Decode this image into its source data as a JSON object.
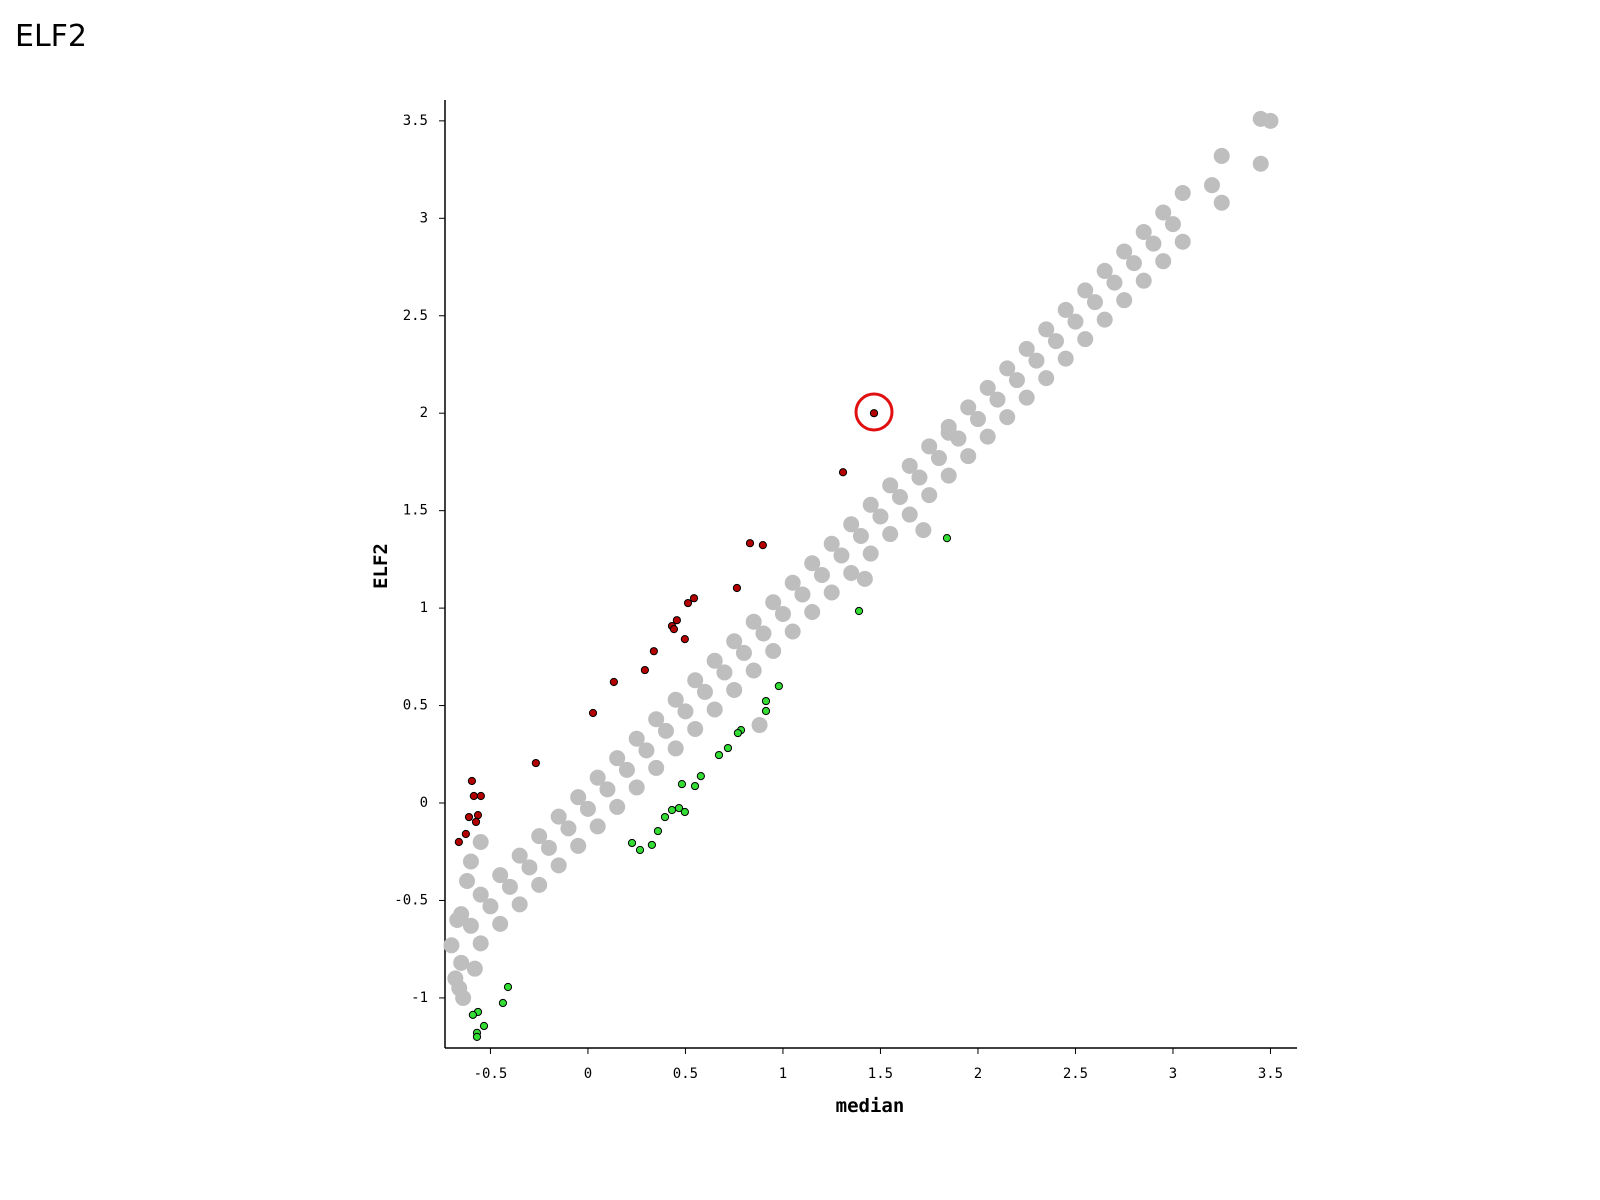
{
  "chart_data": {
    "type": "scatter",
    "title": "ELF2",
    "xlabel": "median",
    "ylabel": "ELF2",
    "xlim": [
      -0.733,
      3.636
    ],
    "ylim": [
      -1.257,
      3.607
    ],
    "xticks": [
      -0.5,
      0,
      0.5,
      1,
      1.5,
      2,
      2.5,
      3,
      3.5
    ],
    "yticks": [
      -1,
      -0.5,
      0,
      0.5,
      1,
      1.5,
      2,
      2.5,
      3,
      3.5
    ],
    "series": [
      {
        "color": "#bebebe",
        "stroke": "none",
        "x": [
          -0.7,
          -0.6,
          -0.5,
          -0.4,
          -0.3,
          -0.2,
          -0.1,
          0,
          0.1,
          0.2,
          0.3,
          0.4,
          0.5,
          0.6,
          0.7,
          0.8,
          0.9,
          1,
          1.1,
          1.2,
          1.3,
          1.4,
          1.5,
          1.6,
          1.7,
          1.8,
          1.9,
          2,
          2.1,
          2.2,
          2.3,
          2.4,
          2.5,
          2.6,
          2.7,
          2.8,
          2.9,
          3,
          3.2,
          3.5,
          -0.65,
          -0.55,
          -0.45,
          -0.35,
          -0.25,
          -0.15,
          -0.05,
          0.05,
          0.15,
          0.25,
          0.35,
          0.45,
          0.55,
          0.65,
          0.75,
          0.85,
          0.95,
          1.05,
          1.15,
          1.25,
          1.35,
          1.45,
          1.55,
          1.65,
          1.75,
          1.85,
          1.95,
          2.05,
          2.15,
          2.25,
          2.35,
          2.45,
          2.55,
          2.65,
          2.75,
          2.85,
          2.95,
          3.05,
          3.25,
          3.45,
          -0.65,
          -0.55,
          -0.45,
          -0.35,
          -0.25,
          -0.15,
          -0.05,
          0.05,
          0.15,
          0.25,
          0.35,
          0.45,
          0.55,
          0.65,
          0.75,
          0.85,
          0.95,
          1.05,
          1.15,
          1.25,
          1.35,
          1.45,
          1.55,
          1.65,
          1.75,
          1.85,
          1.95,
          2.05,
          2.15,
          2.25,
          2.35,
          2.45,
          2.55,
          2.65,
          2.75,
          2.85,
          2.95,
          3.05,
          3.25,
          3.45,
          -0.68,
          -0.66,
          -0.64,
          -0.62,
          -0.6,
          -0.58,
          -0.55,
          -0.67,
          0.88,
          1.42,
          1.72,
          1.85
        ],
        "values": [
          -0.73,
          -0.63,
          -0.53,
          -0.43,
          -0.33,
          -0.23,
          -0.13,
          -0.03,
          0.07,
          0.17,
          0.27,
          0.37,
          0.47,
          0.57,
          0.67,
          0.77,
          0.87,
          0.97,
          1.07,
          1.17,
          1.27,
          1.37,
          1.47,
          1.57,
          1.67,
          1.77,
          1.87,
          1.97,
          2.07,
          2.17,
          2.27,
          2.37,
          2.47,
          2.57,
          2.67,
          2.77,
          2.87,
          2.97,
          3.17,
          3.5,
          -0.57,
          -0.47,
          -0.37,
          -0.27,
          -0.17,
          -0.07,
          0.03,
          0.13,
          0.23,
          0.33,
          0.43,
          0.53,
          0.63,
          0.73,
          0.83,
          0.93,
          1.03,
          1.13,
          1.23,
          1.33,
          1.43,
          1.53,
          1.63,
          1.73,
          1.83,
          1.93,
          2.03,
          2.13,
          2.23,
          2.33,
          2.43,
          2.53,
          2.63,
          2.73,
          2.83,
          2.93,
          3.03,
          3.13,
          3.32,
          3.51,
          -0.82,
          -0.72,
          -0.62,
          -0.52,
          -0.42,
          -0.32,
          -0.22,
          -0.12,
          -0.02,
          0.08,
          0.18,
          0.28,
          0.38,
          0.48,
          0.58,
          0.68,
          0.78,
          0.88,
          0.98,
          1.08,
          1.18,
          1.28,
          1.38,
          1.48,
          1.58,
          1.68,
          1.78,
          1.88,
          1.98,
          2.08,
          2.18,
          2.28,
          2.38,
          2.48,
          2.58,
          2.68,
          2.78,
          2.88,
          3.08,
          3.28,
          -0.9,
          -0.95,
          -1.0,
          -0.4,
          -0.3,
          -0.85,
          -0.2,
          -0.6,
          0.4,
          1.15,
          1.4,
          1.9
        ]
      },
      {
        "color": "#b40000",
        "stroke": "#000000",
        "x": [
          1.467,
          1.308,
          0.831,
          0.897,
          0.764,
          0.544,
          0.513,
          0.456,
          0.431,
          0.441,
          0.497,
          0.338,
          0.292,
          0.133,
          0.026,
          -0.267,
          -0.595,
          -0.585,
          -0.549,
          -0.61,
          -0.564,
          -0.574,
          -0.626,
          -0.662
        ],
        "values": [
          2.0,
          1.697,
          1.333,
          1.323,
          1.103,
          1.051,
          1.026,
          0.938,
          0.908,
          0.892,
          0.841,
          0.779,
          0.682,
          0.621,
          0.462,
          0.205,
          0.113,
          0.036,
          0.036,
          -0.072,
          -0.062,
          -0.097,
          -0.159,
          -0.2
        ]
      },
      {
        "color": "#33dd33",
        "stroke": "#000000",
        "x": [
          1.841,
          1.39,
          0.979,
          0.913,
          0.913,
          0.785,
          0.769,
          0.718,
          0.672,
          0.579,
          0.482,
          0.549,
          0.431,
          0.467,
          0.497,
          0.395,
          0.359,
          0.226,
          0.267,
          0.328,
          -0.41,
          -0.436,
          -0.564,
          -0.59,
          -0.533,
          -0.569,
          -0.569
        ],
        "values": [
          1.359,
          0.985,
          0.6,
          0.523,
          0.472,
          0.374,
          0.359,
          0.282,
          0.246,
          0.138,
          0.097,
          0.087,
          -0.036,
          -0.026,
          -0.046,
          -0.072,
          -0.144,
          -0.205,
          -0.241,
          -0.215,
          -0.944,
          -1.026,
          -1.072,
          -1.087,
          -1.144,
          -1.179,
          -1.2
        ]
      }
    ]
  }
}
